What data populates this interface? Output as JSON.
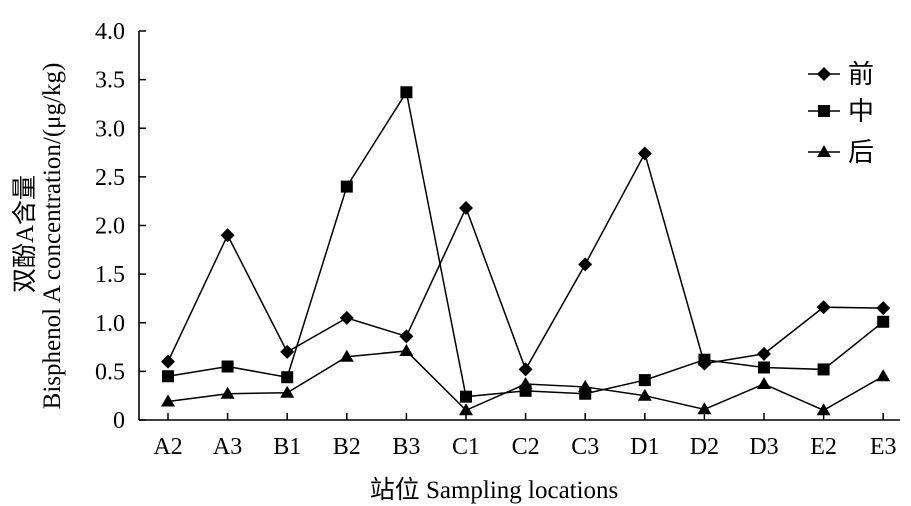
{
  "chart_data": {
    "type": "line",
    "title": "",
    "xlabel": "站位 Sampling locations",
    "ylabel": "Bisphenol A concentration/(μg/kg)",
    "ylabel_cn": "双酚A含量",
    "categories": [
      "A2",
      "A3",
      "B1",
      "B2",
      "B3",
      "C1",
      "C2",
      "C3",
      "D1",
      "D2",
      "D3",
      "E2",
      "E3"
    ],
    "yticks": [
      "0",
      "0.5",
      "1.0",
      "1.5",
      "2.0",
      "2.5",
      "3.0",
      "3.5",
      "4.0"
    ],
    "ylim": [
      0,
      4.0
    ],
    "grid": false,
    "legend_position": "top-right",
    "series": [
      {
        "name": "前",
        "marker": "diamond",
        "values": [
          0.6,
          1.9,
          0.7,
          1.05,
          0.86,
          2.18,
          0.52,
          1.6,
          2.74,
          0.58,
          0.68,
          1.16,
          1.15
        ]
      },
      {
        "name": "中",
        "marker": "square",
        "values": [
          0.45,
          0.55,
          0.44,
          2.4,
          3.37,
          0.24,
          0.3,
          0.27,
          0.41,
          0.62,
          0.54,
          0.52,
          1.01
        ]
      },
      {
        "name": "后",
        "marker": "triangle",
        "values": [
          0.19,
          0.27,
          0.28,
          0.65,
          0.71,
          0.1,
          0.37,
          0.34,
          0.25,
          0.11,
          0.37,
          0.1,
          0.45
        ]
      }
    ]
  }
}
